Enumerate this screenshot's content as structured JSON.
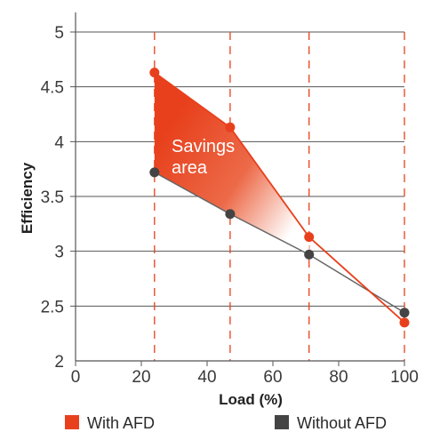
{
  "chart_data": {
    "type": "line",
    "title": "",
    "xlabel": "Load (%)",
    "ylabel": "Efficiency",
    "xlim": [
      0,
      100
    ],
    "ylim": [
      2,
      5
    ],
    "x_ticks": [
      "0",
      "20",
      "40",
      "60",
      "80",
      "100"
    ],
    "y_ticks": [
      "2",
      "2.5",
      "3",
      "3.5",
      "4",
      "4.5",
      "5"
    ],
    "grid": "horizontal gridlines plus dashed vertical lines at measured loads",
    "vertical_markers": [
      24,
      47,
      71,
      100
    ],
    "series": [
      {
        "name": "With AFD",
        "color": "#e8401c",
        "x": [
          24,
          47,
          71,
          100
        ],
        "y": [
          4.63,
          4.13,
          3.13,
          2.35
        ]
      },
      {
        "name": "Without AFD",
        "color": "#444444",
        "x": [
          24,
          47,
          71,
          100
        ],
        "y": [
          3.72,
          3.34,
          2.97,
          2.44
        ]
      }
    ],
    "annotations": [
      {
        "text_lines": [
          "Savings",
          "area"
        ]
      }
    ],
    "legend": {
      "placement": "bottom"
    }
  }
}
